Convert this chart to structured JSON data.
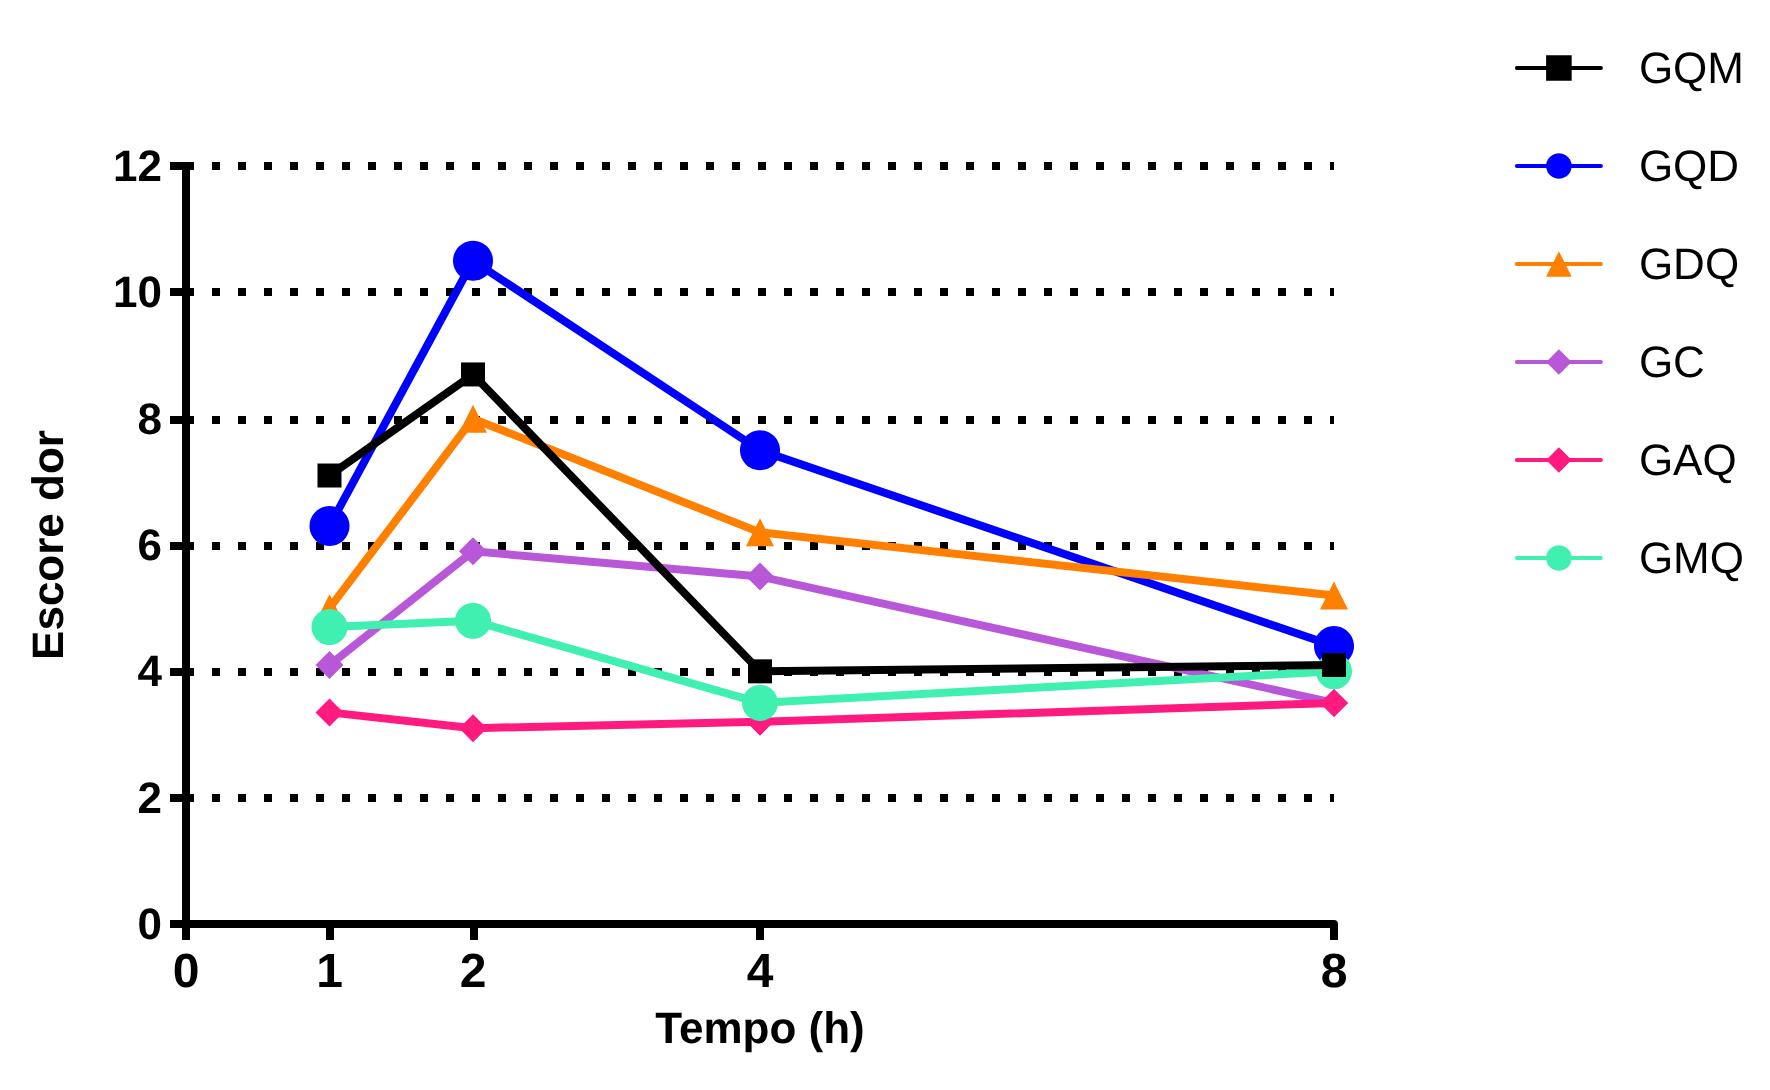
{
  "chart_data": {
    "type": "line",
    "xlabel": "Tempo (h)",
    "ylabel": "Escore dor",
    "x": [
      1,
      2,
      4,
      8
    ],
    "xlim": [
      0,
      8
    ],
    "xticks": [
      0,
      1,
      2,
      4,
      8
    ],
    "ylim": [
      0,
      12
    ],
    "yticks": [
      0,
      2,
      4,
      6,
      8,
      10,
      12
    ],
    "grid": "y",
    "legend": "top right",
    "line_style": "solid",
    "series": [
      {
        "name": "GQM",
        "color": "#000000",
        "marker": "square",
        "values": [
          7.1,
          8.7,
          4.0,
          4.1
        ]
      },
      {
        "name": "GQD",
        "color": "#0000ff",
        "marker": "circle",
        "values": [
          6.3,
          10.5,
          7.5,
          4.4
        ]
      },
      {
        "name": "GDQ",
        "color": "#ff8000",
        "marker": "triangle",
        "values": [
          5.0,
          8.0,
          6.2,
          5.2
        ]
      },
      {
        "name": "GC",
        "color": "#b857d8",
        "marker": "diamond",
        "values": [
          4.1,
          5.9,
          5.5,
          3.5
        ]
      },
      {
        "name": "GAQ",
        "color": "#ff1a80",
        "marker": "diamond",
        "values": [
          3.35,
          3.1,
          3.2,
          3.5
        ]
      },
      {
        "name": "GMQ",
        "color": "#40f0b0",
        "marker": "circle",
        "values": [
          4.7,
          4.8,
          3.5,
          4.0
        ]
      }
    ]
  }
}
